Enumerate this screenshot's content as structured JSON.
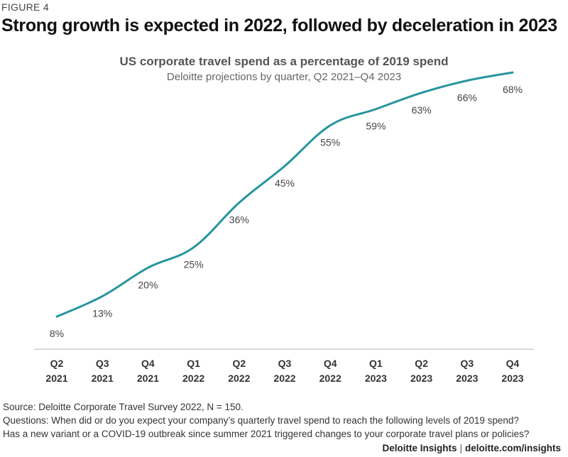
{
  "figure_label": "FIGURE 4",
  "headline": "Strong growth is expected in 2022, followed by deceleration in 2023",
  "chart_data": {
    "type": "line",
    "title": "US corporate travel spend as a percentage of 2019 spend",
    "subtitle": "Deloitte projections by quarter, Q2 2021–Q4 2023",
    "categories": [
      {
        "q": "Q2",
        "y": "2021"
      },
      {
        "q": "Q3",
        "y": "2021"
      },
      {
        "q": "Q4",
        "y": "2021"
      },
      {
        "q": "Q1",
        "y": "2022"
      },
      {
        "q": "Q2",
        "y": "2022"
      },
      {
        "q": "Q3",
        "y": "2022"
      },
      {
        "q": "Q4",
        "y": "2022"
      },
      {
        "q": "Q1",
        "y": "2023"
      },
      {
        "q": "Q2",
        "y": "2023"
      },
      {
        "q": "Q3",
        "y": "2023"
      },
      {
        "q": "Q4",
        "y": "2023"
      }
    ],
    "values": [
      8,
      13,
      20,
      25,
      36,
      45,
      55,
      59,
      63,
      66,
      68
    ],
    "labels": [
      "8%",
      "13%",
      "20%",
      "25%",
      "36%",
      "45%",
      "55%",
      "59%",
      "63%",
      "66%",
      "68%"
    ],
    "unit": "%",
    "ylim": [
      0,
      75
    ],
    "line_color": "#26959e",
    "grid": false
  },
  "source": "Source: Deloitte Corporate Travel Survey 2022, N = 150.",
  "questions": [
    "Questions: When did or do you expect your company’s quarterly travel spend to reach the following levels of 2019 spend?",
    "Has a new variant or a COVID-19 outbreak since summer 2021 triggered changes to your corporate travel plans or policies?"
  ],
  "footer": {
    "brand": "Deloitte Insights",
    "separator": "|",
    "url": "deloitte.com/insights"
  }
}
